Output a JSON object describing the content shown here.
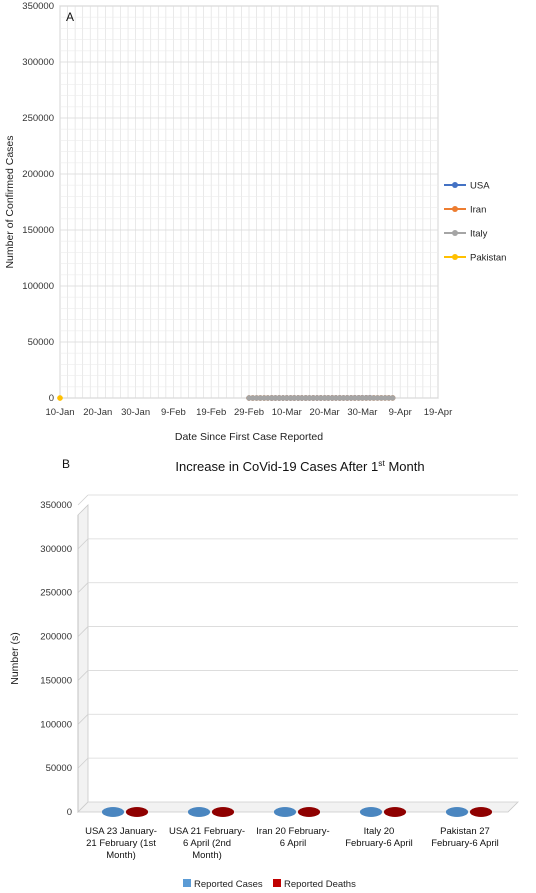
{
  "chart_data": [
    {
      "type": "line",
      "panel_label": "A",
      "xlabel": "Date Since First Case Reported",
      "ylabel": "Number of Confirmed Cases",
      "x_ticks": [
        "10-Jan",
        "20-Jan",
        "30-Jan",
        "9-Feb",
        "19-Feb",
        "29-Feb",
        "10-Mar",
        "20-Mar",
        "30-Mar",
        "9-Apr",
        "19-Apr"
      ],
      "y_ticks": [
        0,
        50000,
        100000,
        150000,
        200000,
        250000,
        300000,
        350000
      ],
      "y_tick_labels": [
        "0",
        "50000",
        "100000",
        "150000",
        "200000",
        "250000",
        "300000",
        "350000"
      ],
      "xlim": [
        0,
        100
      ],
      "ylim": [
        0,
        350000
      ],
      "grid": true,
      "legend_position": "right",
      "series": [
        {
          "name": "USA",
          "color": "#4472C4",
          "points": [
            [
              56,
              1
            ],
            [
              57,
              2
            ],
            [
              58,
              3
            ],
            [
              59,
              5
            ],
            [
              60,
              6
            ],
            [
              61,
              8
            ],
            [
              62,
              10
            ],
            [
              63,
              12
            ],
            [
              64,
              14
            ],
            [
              65,
              16
            ],
            [
              66,
              18
            ],
            [
              67,
              20
            ],
            [
              68,
              22
            ],
            [
              69,
              24
            ],
            [
              70,
              27
            ],
            [
              71,
              30
            ],
            [
              72,
              33
            ],
            [
              73,
              36
            ],
            [
              74,
              40
            ],
            [
              75,
              45
            ],
            [
              76,
              55
            ],
            [
              77,
              70
            ],
            [
              78,
              90
            ],
            [
              79,
              110
            ],
            [
              80,
              130
            ],
            [
              81,
              160
            ],
            [
              82,
              200
            ]
          ]
        },
        {
          "name": "Iran",
          "color": "#ED7D31",
          "points": [
            [
              50,
              1
            ],
            [
              51,
              2
            ],
            [
              52,
              3
            ],
            [
              53,
              4
            ],
            [
              54,
              5
            ],
            [
              55,
              6
            ],
            [
              56,
              7
            ],
            [
              57,
              8
            ],
            [
              58,
              9
            ],
            [
              59,
              10
            ],
            [
              60,
              11
            ],
            [
              61,
              12
            ],
            [
              62,
              13
            ],
            [
              63,
              14
            ],
            [
              64,
              15
            ],
            [
              65,
              16
            ],
            [
              66,
              17
            ],
            [
              67,
              18
            ],
            [
              68,
              19
            ],
            [
              69,
              20
            ],
            [
              70,
              22
            ],
            [
              71,
              24
            ],
            [
              72,
              26
            ],
            [
              73,
              28
            ],
            [
              74,
              30
            ],
            [
              75,
              32
            ],
            [
              76,
              34
            ],
            [
              77,
              36
            ],
            [
              78,
              38
            ],
            [
              79,
              40
            ],
            [
              80,
              42
            ],
            [
              81,
              44
            ],
            [
              82,
              46
            ],
            [
              83,
              48
            ],
            [
              84,
              50
            ],
            [
              85,
              52
            ],
            [
              86,
              54
            ],
            [
              87,
              56
            ],
            [
              88,
              58
            ]
          ]
        },
        {
          "name": "Italy",
          "color": "#A5A5A5",
          "points": [
            [
              50,
              1
            ],
            [
              51,
              2
            ],
            [
              52,
              3
            ],
            [
              53,
              4
            ],
            [
              54,
              5
            ],
            [
              55,
              6
            ],
            [
              56,
              7
            ],
            [
              57,
              8
            ],
            [
              58,
              9
            ],
            [
              59,
              10
            ],
            [
              60,
              11
            ],
            [
              61,
              12
            ],
            [
              62,
              13
            ],
            [
              63,
              14
            ],
            [
              64,
              15
            ],
            [
              65,
              16
            ],
            [
              66,
              17
            ],
            [
              67,
              18
            ],
            [
              68,
              19
            ],
            [
              69,
              20
            ],
            [
              70,
              22
            ],
            [
              71,
              24
            ],
            [
              72,
              26
            ],
            [
              73,
              28
            ],
            [
              74,
              30
            ],
            [
              75,
              32
            ],
            [
              76,
              34
            ],
            [
              77,
              36
            ],
            [
              78,
              38
            ],
            [
              79,
              40
            ],
            [
              80,
              42
            ],
            [
              81,
              44
            ],
            [
              82,
              46
            ],
            [
              83,
              48
            ],
            [
              84,
              50
            ],
            [
              85,
              52
            ],
            [
              86,
              54
            ],
            [
              87,
              56
            ],
            [
              88,
              58
            ]
          ]
        },
        {
          "name": "Pakistan",
          "color": "#FFC000",
          "points": [
            [
              0,
              0
            ]
          ]
        }
      ]
    },
    {
      "type": "bar",
      "panel_label": "B",
      "title": "Increase in CoVid-19 Cases After 1st Month",
      "title_main": "Increase in CoVid-19 Cases After 1",
      "title_sup": "st",
      "title_end": " Month",
      "ylabel": "Number (s)",
      "y_ticks": [
        0,
        50000,
        100000,
        150000,
        200000,
        250000,
        300000,
        350000
      ],
      "y_tick_labels": [
        "0",
        "50000",
        "100000",
        "150000",
        "200000",
        "250000",
        "300000",
        "350000"
      ],
      "ylim": [
        0,
        350000
      ],
      "categories": [
        [
          "USA 23 January-",
          "21 February (1st",
          "Month)"
        ],
        [
          "USA 21 February-",
          "6 April (2nd",
          "Month)"
        ],
        [
          "Iran 20 February-",
          "6 April"
        ],
        [
          "Italy 20",
          "February-6 April"
        ],
        [
          "Pakistan 27",
          "February-6 April"
        ]
      ],
      "legend_position": "bottom",
      "series": [
        {
          "name": "Reported Cases",
          "color": "#5B9BD5",
          "values": [
            0,
            0,
            0,
            0,
            0
          ]
        },
        {
          "name": "Reported Deaths",
          "color": "#C00000",
          "values": [
            0,
            0,
            0,
            0,
            0
          ]
        }
      ]
    }
  ]
}
